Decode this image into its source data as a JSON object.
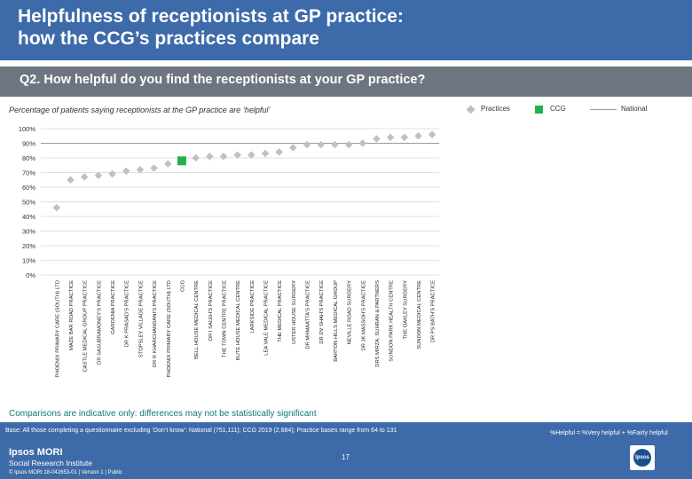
{
  "header": {
    "title_line1": "Helpfulness of receptionists at GP practice:",
    "title_line2": "how the CCG’s practices compare",
    "question": "Q2. How helpful do you find the receptionists at your GP practice?"
  },
  "subtitle": "Percentage of patients saying receptionists at the GP practice are ‘helpful’",
  "legend": {
    "practices": "Practices",
    "ccg": "CCG",
    "national": "National"
  },
  "colors": {
    "header": "#3d6aa8",
    "practice_marker": "#c0c0c0",
    "ccg_marker": "#22b24c",
    "national_line": "#999999",
    "note": "#0e7a7a"
  },
  "chart_data": {
    "type": "scatter",
    "title": "Percentage of patients saying receptionists at the GP practice are ‘helpful’",
    "ylim": [
      0,
      100
    ],
    "yticks": [
      "0%",
      "10%",
      "20%",
      "30%",
      "40%",
      "50%",
      "60%",
      "70%",
      "80%",
      "90%",
      "100%"
    ],
    "national": 90,
    "categories": [
      "PHOENIX PRIMARY CARE (SOUTH) LTD",
      "MAZE BAR ROAD PRACTICE",
      "CASTLE MEDICAL GROUP PRACTICE",
      "DR SASUBRAMONEY'S PRACTICE",
      "GARDENIA PRACTICE",
      "DR K PRASAD'S PRACTICE",
      "STOPSLEY VILLAGE PRACTICE",
      "DR R KHARCHANDANI'S PRACTICE",
      "PHOENIX PRIMARY CARE (SOUTH) LTD",
      "CCG",
      "BELL HOUSE MEDICAL CENTRE",
      "DR I SALEH'S PRACTICE",
      "THE TOWN CENTRE PRACTICE",
      "BUTE HOUSE MEDICAL CENTRE",
      "LARKSIDE PRACTICE",
      "LEA VALE MEDICAL PRACTICE",
      "THE MEDICAL PRACTICE",
      "USTER HOUSE SURGERY",
      "DR MHMAATTA'S PRACTICE",
      "DR DV SHAH'S PRACTICE",
      "BARTON HILLS MEDICAL GROUP",
      "NEVILLE ROAD SURGERY",
      "DR JK MASSOH'S PRACTICE",
      "DRS MIRZA, SUHRAN & PARTNERS",
      "SUNDON PARK HEALTH CENTRE",
      "THE OAKLEY SURGERY",
      "SUNDON MEDICAL CENTRE",
      "DR PS BATH'S PRACTICE"
    ],
    "values": [
      46,
      65,
      67,
      68,
      69,
      71,
      72,
      73,
      76,
      78,
      80,
      81,
      81,
      82,
      82,
      83,
      84,
      87,
      89,
      89,
      89,
      89,
      90,
      93,
      94,
      94,
      95,
      96
    ],
    "ccg_index": 9
  },
  "note": "Comparisons are indicative only: differences may not be statistically significant",
  "footer": {
    "base": "Base: All those completing a questionnaire excluding ‘Don’t know’: National (751,111); CCG 2019 (2,684); Practice bases range from 64 to 131",
    "formula": "%Helpful = %Very helpful + %Fairly helpful",
    "logo_line1": "Ipsos MORI",
    "logo_line2": "Social Research Institute",
    "copyright": "© Ipsos MORI      18-042653-01 | Version 1 | Public",
    "page": "17",
    "ipsos": "Ipsos"
  }
}
